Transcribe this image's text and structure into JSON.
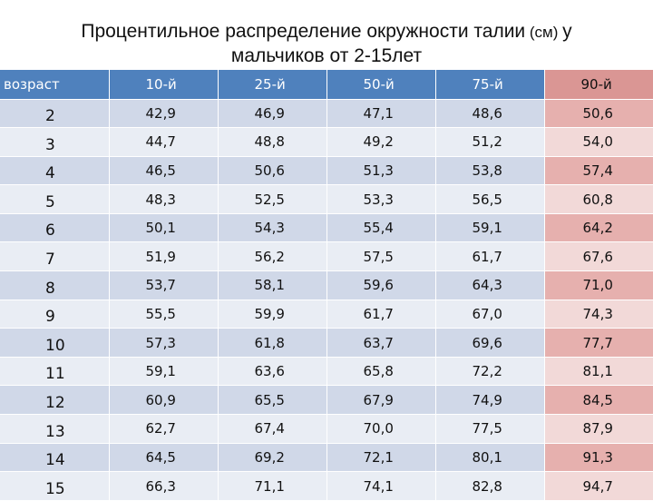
{
  "title": {
    "line1_main": "Процентильное распределение окружности талии",
    "line1_small": " (см) ",
    "line1_end": "у",
    "line2": "мальчиков от 2-15лет"
  },
  "table": {
    "headers": [
      "возраст",
      "10-й",
      "25-й",
      "50-й",
      "75-й",
      "90-й"
    ],
    "rows": [
      [
        "2",
        "42,9",
        "46,9",
        "47,1",
        "48,6",
        "50,6"
      ],
      [
        "3",
        "44,7",
        "48,8",
        "49,2",
        "51,2",
        "54,0"
      ],
      [
        "4",
        "46,5",
        "50,6",
        "51,3",
        "53,8",
        "57,4"
      ],
      [
        "5",
        "48,3",
        "52,5",
        "53,3",
        "56,5",
        "60,8"
      ],
      [
        "6",
        "50,1",
        "54,3",
        "55,4",
        "59,1",
        "64,2"
      ],
      [
        "7",
        "51,9",
        "56,2",
        "57,5",
        "61,7",
        "67,6"
      ],
      [
        "8",
        "53,7",
        "58,1",
        "59,6",
        "64,3",
        "71,0"
      ],
      [
        "9",
        "55,5",
        "59,9",
        "61,7",
        "67,0",
        "74,3"
      ],
      [
        "10",
        "57,3",
        "61,8",
        "63,7",
        "69,6",
        "77,7"
      ],
      [
        "11",
        "59,1",
        "63,6",
        "65,8",
        "72,2",
        "81,1"
      ],
      [
        "12",
        "60,9",
        "65,5",
        "67,9",
        "74,9",
        "84,5"
      ],
      [
        "13",
        "62,7",
        "67,4",
        "70,0",
        "77,5",
        "87,9"
      ],
      [
        "14",
        "64,5",
        "69,2",
        "72,1",
        "80,1",
        "91,3"
      ],
      [
        "15",
        "66,3",
        "71,1",
        "74,1",
        "82,8",
        "94,7"
      ]
    ]
  },
  "colors": {
    "header_blue": "#4f81bd",
    "header_highlight": "#da9694",
    "row_dark": "#d0d8e8",
    "row_light": "#e9edf4",
    "highlight_dark": "#e6b0ae",
    "highlight_light": "#f2d9d8"
  }
}
